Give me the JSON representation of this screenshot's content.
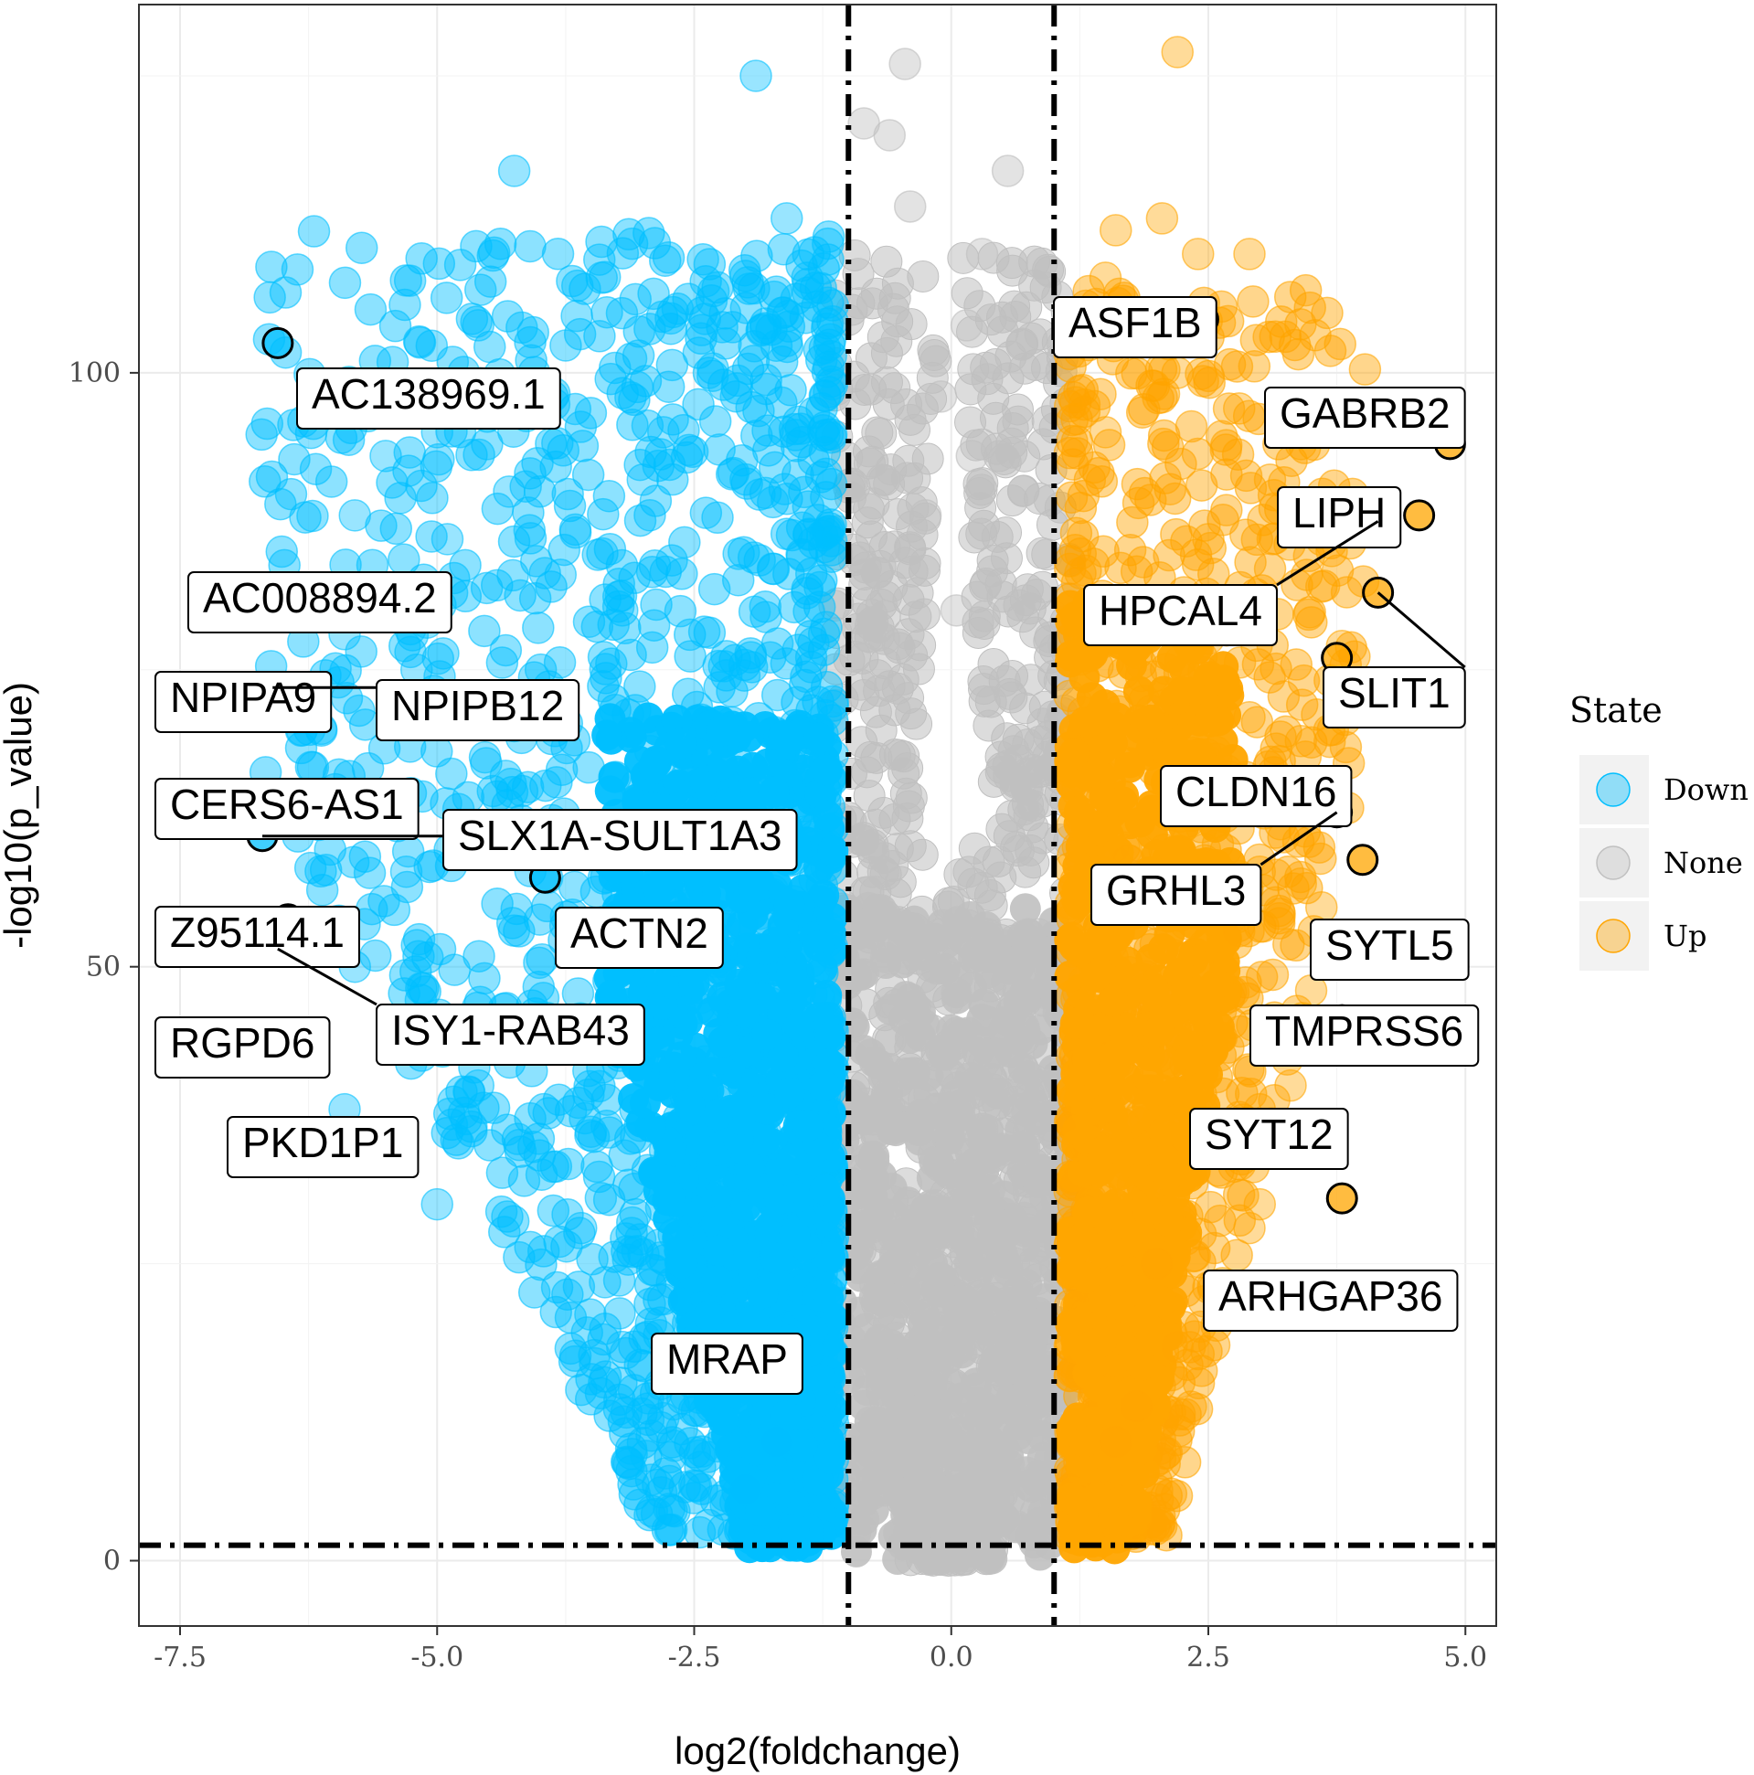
{
  "colors": {
    "down": "#00BFFF",
    "none": "#C0C0C0",
    "up": "#FFA500"
  },
  "chart_data": {
    "type": "scatter",
    "subtype": "volcano",
    "xlabel": "log2(foldchange)",
    "ylabel": "-log10(p_value)",
    "xlim": [
      -7.9,
      5.3
    ],
    "ylim": [
      -5.5,
      131
    ],
    "x_ticks": [
      -7.5,
      -5.0,
      -2.5,
      0.0,
      2.5,
      5.0
    ],
    "x_tick_labels": [
      "-7.5",
      "-5.0",
      "-2.5",
      "0.0",
      "2.5",
      "5.0"
    ],
    "y_ticks": [
      0,
      50,
      100
    ],
    "y_tick_labels": [
      "0",
      "50",
      "100"
    ],
    "grid": true,
    "thresholds": {
      "log2fc": [
        -1,
        1
      ],
      "neg_log10_p": 1.3
    },
    "legend": {
      "title": "State",
      "position": "right",
      "entries": [
        {
          "name": "Down",
          "color": "#00BFFF"
        },
        {
          "name": "None",
          "color": "#C0C0C0"
        },
        {
          "name": "Up",
          "color": "#FFA500"
        }
      ]
    },
    "labeled_points": [
      {
        "gene": "AC138969.1",
        "x": -6.55,
        "y": 102.5,
        "state": "Down"
      },
      {
        "gene": "AC008894.2",
        "x": -6.65,
        "y": 81.5,
        "state": "Down"
      },
      {
        "gene": "NPIPA9",
        "x": -6.6,
        "y": 73.5,
        "state": "Down"
      },
      {
        "gene": "NPIPB12",
        "x": -6.6,
        "y": 73.5,
        "state": "Down"
      },
      {
        "gene": "CERS6-AS1",
        "x": -6.6,
        "y": 63.0,
        "state": "Down"
      },
      {
        "gene": "SLX1A-SULT1A3",
        "x": -6.7,
        "y": 61.0,
        "state": "Down"
      },
      {
        "gene": "Z95114.1",
        "x": -6.45,
        "y": 54.0,
        "state": "Down"
      },
      {
        "gene": "RGPD6",
        "x": -6.55,
        "y": 51.5,
        "state": "Down"
      },
      {
        "gene": "ISY1-RAB43",
        "x": -6.55,
        "y": 51.5,
        "state": "Down"
      },
      {
        "gene": "PKD1P1",
        "x": -6.45,
        "y": 43.0,
        "state": "Down"
      },
      {
        "gene": "ACTN2",
        "x": -3.95,
        "y": 57.5,
        "state": "Down"
      },
      {
        "gene": "MRAP",
        "x": -2.45,
        "y": 16.5,
        "state": "Down"
      },
      {
        "gene": "ASF1B",
        "x": 2.45,
        "y": 104.5,
        "state": "Up"
      },
      {
        "gene": "GABRB2",
        "x": 4.85,
        "y": 94.0,
        "state": "Up"
      },
      {
        "gene": "LIPH",
        "x": 4.55,
        "y": 88.0,
        "state": "Up"
      },
      {
        "gene": "HPCAL4",
        "x": 4.15,
        "y": 87.5,
        "state": "Up"
      },
      {
        "gene": "SLIT1",
        "x": 4.15,
        "y": 81.5,
        "state": "Up"
      },
      {
        "gene": "CLDN16",
        "x": 3.75,
        "y": 76.0,
        "state": "Up"
      },
      {
        "gene": "GRHL3",
        "x": 3.75,
        "y": 63.0,
        "state": "Up"
      },
      {
        "gene": "SYTL5",
        "x": 4.0,
        "y": 59.0,
        "state": "Up"
      },
      {
        "gene": "TMPRSS6",
        "x": 3.8,
        "y": 45.5,
        "state": "Up"
      },
      {
        "gene": "SYT12",
        "x": 3.65,
        "y": 35.5,
        "state": "Up"
      },
      {
        "gene": "ARHGAP36",
        "x": 3.8,
        "y": 30.5,
        "state": "Up"
      }
    ],
    "background_points": {
      "note": "Thousands of transcripts: |log2FC|<~1.1 grey (None), left blue (Down), right orange (Up)",
      "down": [
        [
          -4.25,
          117
        ],
        [
          -1.9,
          125
        ],
        [
          -4.6,
          104
        ],
        [
          -3.4,
          108
        ],
        [
          -5.0,
          95
        ],
        [
          -4.0,
          99
        ],
        [
          -5.5,
          93
        ],
        [
          -3.0,
          91
        ],
        [
          -4.3,
          90
        ],
        [
          -5.8,
          88
        ],
        [
          -4.9,
          86
        ],
        [
          -3.8,
          83
        ],
        [
          -5.9,
          78
        ],
        [
          -5.2,
          75
        ],
        [
          -4.5,
          72
        ],
        [
          -3.2,
          80
        ],
        [
          -2.8,
          95
        ],
        [
          -2.2,
          105
        ],
        [
          -1.6,
          113
        ],
        [
          -1.4,
          108
        ],
        [
          -5.3,
          58
        ],
        [
          -5.8,
          50
        ],
        [
          -5.0,
          45
        ],
        [
          -4.6,
          40
        ],
        [
          -5.9,
          38
        ],
        [
          -4.2,
          35
        ],
        [
          -5.0,
          30
        ],
        [
          -3.6,
          28
        ],
        [
          -3.1,
          26
        ],
        [
          -2.8,
          22
        ],
        [
          -3.2,
          18
        ],
        [
          -2.3,
          15
        ],
        [
          -2.8,
          12
        ],
        [
          -1.7,
          10
        ],
        [
          -2.0,
          6
        ]
      ],
      "none": [
        [
          -0.45,
          126
        ],
        [
          -0.6,
          120
        ],
        [
          -0.85,
          121
        ],
        [
          0.55,
          117
        ],
        [
          -0.4,
          114
        ],
        [
          0.3,
          110
        ],
        [
          0.15,
          104
        ],
        [
          -0.1,
          98
        ],
        [
          0.2,
          93
        ],
        [
          -0.25,
          88
        ],
        [
          0.05,
          80
        ]
      ],
      "up": [
        [
          2.2,
          127
        ],
        [
          1.6,
          112
        ],
        [
          2.05,
          113
        ],
        [
          1.5,
          108
        ],
        [
          2.4,
          110
        ],
        [
          2.9,
          110
        ],
        [
          1.8,
          104
        ],
        [
          2.2,
          100
        ],
        [
          2.8,
          97
        ],
        [
          3.4,
          94
        ],
        [
          1.5,
          95
        ],
        [
          3.1,
          91
        ],
        [
          2.5,
          86
        ],
        [
          3.7,
          85
        ],
        [
          3.6,
          82
        ],
        [
          3.8,
          77
        ],
        [
          3.9,
          73
        ],
        [
          2.9,
          71
        ],
        [
          3.4,
          69
        ],
        [
          2.7,
          66
        ],
        [
          3.2,
          62
        ],
        [
          3.0,
          58
        ],
        [
          3.4,
          57
        ],
        [
          2.8,
          53
        ],
        [
          3.6,
          55
        ],
        [
          3.5,
          48
        ],
        [
          3.3,
          40
        ],
        [
          3.0,
          38
        ],
        [
          3.0,
          35
        ],
        [
          3.0,
          30
        ],
        [
          2.0,
          25
        ],
        [
          2.9,
          28
        ],
        [
          2.5,
          23
        ],
        [
          2.2,
          18
        ],
        [
          1.8,
          13
        ],
        [
          1.6,
          10
        ]
      ]
    }
  }
}
